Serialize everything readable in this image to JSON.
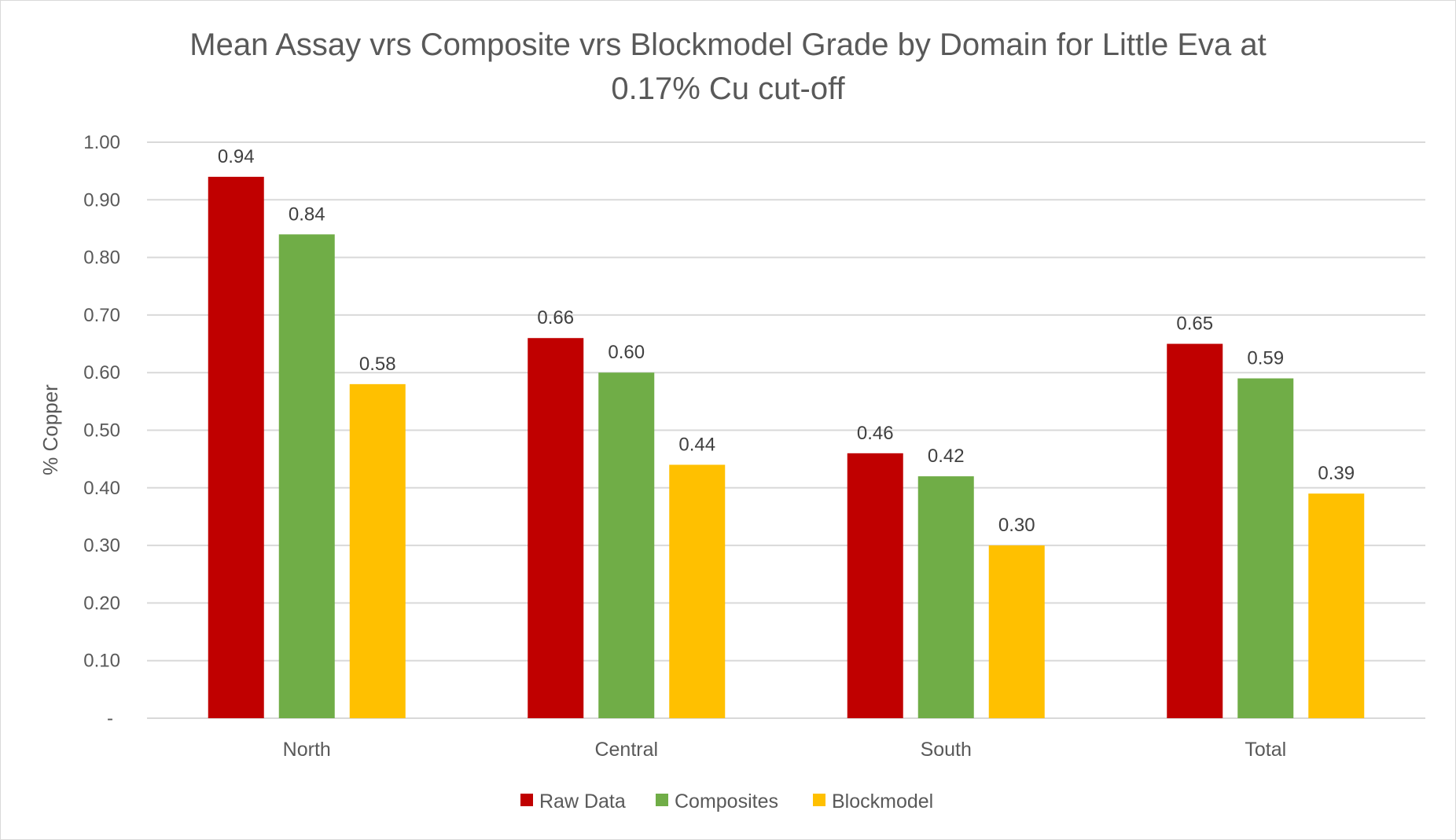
{
  "chart_data": {
    "type": "bar",
    "title": "Mean Assay vrs Composite vrs Blockmodel Grade by Domain for Little Eva at 0.17% Cu cut-off",
    "title_lines": [
      "Mean Assay vrs Composite vrs Blockmodel Grade by Domain for Little Eva at",
      "0.17% Cu cut-off"
    ],
    "xlabel": "",
    "ylabel": "% Copper",
    "ylim": [
      0,
      1.0
    ],
    "yticks": [
      0,
      0.1,
      0.2,
      0.3,
      0.4,
      0.5,
      0.6,
      0.7,
      0.8,
      0.9,
      1.0
    ],
    "ytick_labels": [
      "-",
      "0.10",
      "0.20",
      "0.30",
      "0.40",
      "0.50",
      "0.60",
      "0.70",
      "0.80",
      "0.90",
      "1.00"
    ],
    "grid": true,
    "legend": "bottom",
    "categories": [
      "North",
      "Central",
      "South",
      "Total"
    ],
    "series": [
      {
        "name": "Raw Data",
        "color": "#c00000",
        "values": [
          0.94,
          0.66,
          0.46,
          0.65
        ],
        "labels": [
          "0.94",
          "0.66",
          "0.46",
          "0.65"
        ]
      },
      {
        "name": "Composites",
        "color": "#70ad47",
        "values": [
          0.84,
          0.6,
          0.42,
          0.59
        ],
        "labels": [
          "0.84",
          "0.60",
          "0.42",
          "0.59"
        ]
      },
      {
        "name": "Blockmodel",
        "color": "#ffc000",
        "values": [
          0.58,
          0.44,
          0.3,
          0.39
        ],
        "labels": [
          "0.58",
          "0.44",
          "0.30",
          "0.39"
        ]
      }
    ]
  }
}
